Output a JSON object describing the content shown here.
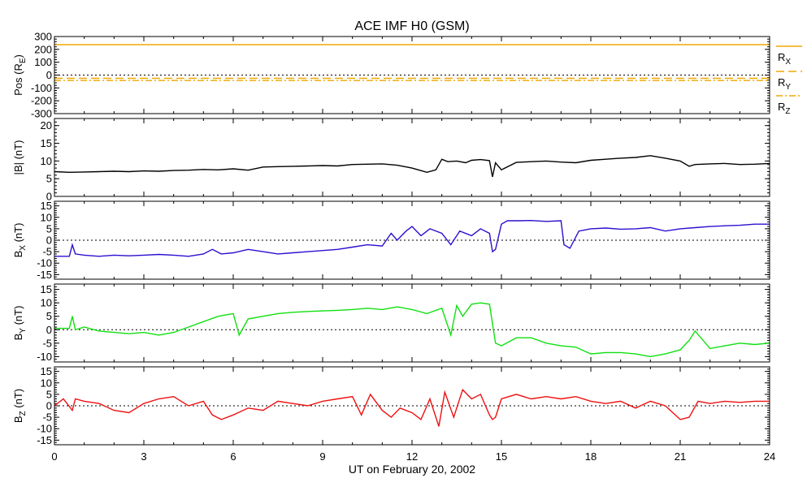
{
  "title": "ACE IMF H0 (GSM)",
  "xlabel": "UT on February 20, 2002",
  "x_ticks": [
    "0",
    "3",
    "6",
    "9",
    "12",
    "15",
    "18",
    "21",
    "24"
  ],
  "xlim": [
    0,
    24
  ],
  "colors": {
    "pos": "#f0a800",
    "b": "#000000",
    "bx": "#2a10d0",
    "by": "#10e010",
    "bz": "#ee1010"
  },
  "chart_data": [
    {
      "type": "line",
      "panel": "pos",
      "ylabel_main": "Pos (R",
      "ylabel_sub": "E",
      "ylabel_tail": ")",
      "ylim": [
        -300,
        300
      ],
      "y_ticks": [
        "300",
        "200",
        "100",
        "0",
        "-100",
        "-200",
        "-300"
      ],
      "y_tick_values": [
        300,
        200,
        100,
        0,
        -100,
        -200,
        -300
      ],
      "reference_line": 0,
      "series": [
        {
          "name": "R",
          "sub": "X",
          "dash": "solid",
          "x": [
            0,
            24
          ],
          "values": [
            237,
            237
          ]
        },
        {
          "name": "R",
          "sub": "Y",
          "dash": "dashed",
          "x": [
            0,
            24
          ],
          "values": [
            -25,
            -25
          ]
        },
        {
          "name": "R",
          "sub": "Z",
          "dash": "dashdot",
          "x": [
            0,
            24
          ],
          "values": [
            -42,
            -42
          ]
        }
      ]
    },
    {
      "type": "line",
      "panel": "b",
      "ylabel_main": "|B| (nT)",
      "ylabel_sub": "",
      "ylabel_tail": "",
      "ylim": [
        0,
        22
      ],
      "y_ticks": [
        "20",
        "15",
        "10",
        "5",
        "0"
      ],
      "y_tick_values": [
        20,
        15,
        10,
        5,
        0
      ],
      "reference_line": null,
      "series": [
        {
          "name": "|B|",
          "x": [
            0,
            0.5,
            1,
            1.5,
            2,
            2.5,
            3,
            3.5,
            4,
            4.5,
            5,
            5.5,
            6,
            6.5,
            7,
            7.5,
            8,
            8.5,
            9,
            9.5,
            10,
            10.5,
            11,
            11.5,
            12,
            12.5,
            12.8,
            13,
            13.2,
            13.5,
            13.8,
            14,
            14.3,
            14.6,
            14.7,
            14.8,
            15,
            15.5,
            16,
            16.5,
            17,
            17.5,
            18,
            18.5,
            19,
            19.5,
            20,
            20.5,
            21,
            21.3,
            21.5,
            22,
            22.5,
            23,
            23.5,
            24
          ],
          "values": [
            7,
            6.8,
            6.9,
            7,
            7.1,
            7.0,
            7.2,
            7.1,
            7.3,
            7.4,
            7.6,
            7.5,
            7.8,
            7.4,
            8.3,
            8.4,
            8.5,
            8.6,
            8.7,
            8.6,
            9.0,
            9.1,
            9.2,
            8.8,
            8.0,
            6.8,
            7.5,
            10.5,
            9.8,
            10.0,
            9.5,
            10.2,
            10.4,
            10.1,
            5.5,
            9.5,
            7.5,
            9.6,
            9.8,
            10.0,
            9.7,
            9.5,
            10.2,
            10.5,
            10.8,
            11.0,
            11.5,
            10.8,
            10.0,
            8.5,
            9.0,
            9.2,
            9.3,
            9.0,
            9.1,
            9.3
          ]
        }
      ]
    },
    {
      "type": "line",
      "panel": "bx",
      "ylabel_main": "B",
      "ylabel_sub": "X",
      "ylabel_tail": " (nT)",
      "ylim": [
        -17,
        17
      ],
      "y_ticks": [
        "15",
        "10",
        "5",
        "0",
        "-5",
        "-10",
        "-15"
      ],
      "y_tick_values": [
        15,
        10,
        5,
        0,
        -5,
        -10,
        -15
      ],
      "reference_line": 0,
      "series": [
        {
          "name": "B_X",
          "x": [
            0,
            0.5,
            0.6,
            0.7,
            1,
            1.5,
            2,
            2.5,
            3,
            3.5,
            4,
            4.5,
            5,
            5.3,
            5.6,
            6,
            6.5,
            7,
            7.5,
            8,
            8.5,
            9,
            9.5,
            10,
            10.5,
            11,
            11.3,
            11.5,
            11.8,
            12,
            12.3,
            12.6,
            13,
            13.3,
            13.6,
            14,
            14.3,
            14.6,
            14.7,
            14.8,
            15,
            15.2,
            15.6,
            16,
            16.5,
            17,
            17.1,
            17.3,
            17.6,
            18,
            18.5,
            19,
            19.5,
            20,
            20.5,
            21,
            21.5,
            22,
            22.5,
            23,
            23.5,
            24
          ],
          "values": [
            -7,
            -7,
            -2,
            -6,
            -6.5,
            -7,
            -6.5,
            -6.8,
            -6.5,
            -6.2,
            -6.5,
            -7,
            -6,
            -4,
            -6,
            -5.5,
            -4,
            -5,
            -6,
            -5.5,
            -5,
            -4.5,
            -4,
            -3,
            -2,
            -2.5,
            3,
            0,
            4,
            6,
            2,
            5,
            3,
            -2,
            4,
            2,
            5,
            3,
            -5,
            -4,
            7,
            8.5,
            8.5,
            8.6,
            8.2,
            8.5,
            -2,
            -3.5,
            4,
            5,
            5.3,
            4.8,
            5,
            5.5,
            4,
            5,
            5.5,
            6,
            6.3,
            6.5,
            7,
            7
          ]
        }
      ]
    },
    {
      "type": "line",
      "panel": "by",
      "ylabel_main": "B",
      "ylabel_sub": "Y",
      "ylabel_tail": " (nT)",
      "ylim": [
        -12,
        17
      ],
      "y_ticks": [
        "15",
        "10",
        "5",
        "0",
        "-5",
        "-10"
      ],
      "y_tick_values": [
        15,
        10,
        5,
        0,
        -5,
        -10
      ],
      "reference_line": 0,
      "series": [
        {
          "name": "B_Y",
          "x": [
            0,
            0.5,
            0.6,
            0.7,
            1,
            1.5,
            2,
            2.5,
            3,
            3.5,
            4,
            4.5,
            5,
            5.5,
            6,
            6.2,
            6.5,
            7,
            7.5,
            8,
            8.5,
            9,
            9.5,
            10,
            10.5,
            11,
            11.5,
            12,
            12.5,
            13,
            13.3,
            13.5,
            13.7,
            14,
            14.3,
            14.6,
            14.8,
            15,
            15.5,
            16,
            16.5,
            17,
            17.5,
            18,
            18.5,
            19,
            19.5,
            20,
            20.5,
            21,
            21.3,
            21.5,
            22,
            22.5,
            23,
            23.5,
            24
          ],
          "values": [
            0.5,
            0.5,
            5,
            0,
            1,
            -0.5,
            -1,
            -1.5,
            -1,
            -2,
            -1,
            1,
            3,
            5,
            6,
            -2,
            4,
            5,
            6,
            6.5,
            6.8,
            7,
            7.2,
            7.5,
            8,
            7.5,
            8.5,
            7.5,
            6,
            8,
            -2,
            9,
            5,
            9.5,
            10,
            9.5,
            -5,
            -6,
            -3,
            -3,
            -5,
            -6,
            -6.5,
            -9,
            -8.5,
            -8.5,
            -9,
            -10,
            -9,
            -7.5,
            -4,
            -0.5,
            -7,
            -6,
            -5,
            -5.5,
            -5
          ]
        }
      ]
    },
    {
      "type": "line",
      "panel": "bz",
      "ylabel_main": "B",
      "ylabel_sub": "Z",
      "ylabel_tail": " (nT)",
      "ylim": [
        -17,
        17
      ],
      "y_ticks": [
        "15",
        "10",
        "5",
        "0",
        "-5",
        "-10",
        "-15"
      ],
      "y_tick_values": [
        15,
        10,
        5,
        0,
        -5,
        -10,
        -15
      ],
      "reference_line": 0,
      "series": [
        {
          "name": "B_Z",
          "x": [
            0,
            0.3,
            0.6,
            0.7,
            1,
            1.5,
            2,
            2.5,
            3,
            3.5,
            4,
            4.5,
            5,
            5.3,
            5.6,
            6,
            6.5,
            7,
            7.5,
            8,
            8.5,
            9,
            9.5,
            10,
            10.3,
            10.6,
            11,
            11.3,
            11.6,
            12,
            12.3,
            12.6,
            12.9,
            13.1,
            13.4,
            13.7,
            14,
            14.3,
            14.6,
            14.7,
            14.8,
            15,
            15.5,
            16,
            16.5,
            17,
            17.5,
            18,
            18.5,
            19,
            19.5,
            20,
            20.5,
            21,
            21.3,
            21.6,
            22,
            22.5,
            23,
            23.5,
            24
          ],
          "values": [
            0,
            3,
            -2,
            3,
            2,
            1,
            -2,
            -3,
            1,
            3,
            4,
            0,
            2,
            -4,
            -6,
            -4,
            -1,
            -2,
            2,
            1,
            0,
            2,
            3,
            4,
            -4,
            5,
            -2,
            -5,
            -1,
            -3,
            -6,
            3,
            -9,
            6,
            -5,
            7,
            3,
            5,
            -4,
            -6,
            -5,
            3,
            5,
            3,
            4,
            3,
            4,
            2,
            1,
            2,
            -1,
            2,
            0,
            -6,
            -5,
            2,
            1,
            2,
            1.5,
            2,
            2
          ]
        }
      ]
    }
  ]
}
